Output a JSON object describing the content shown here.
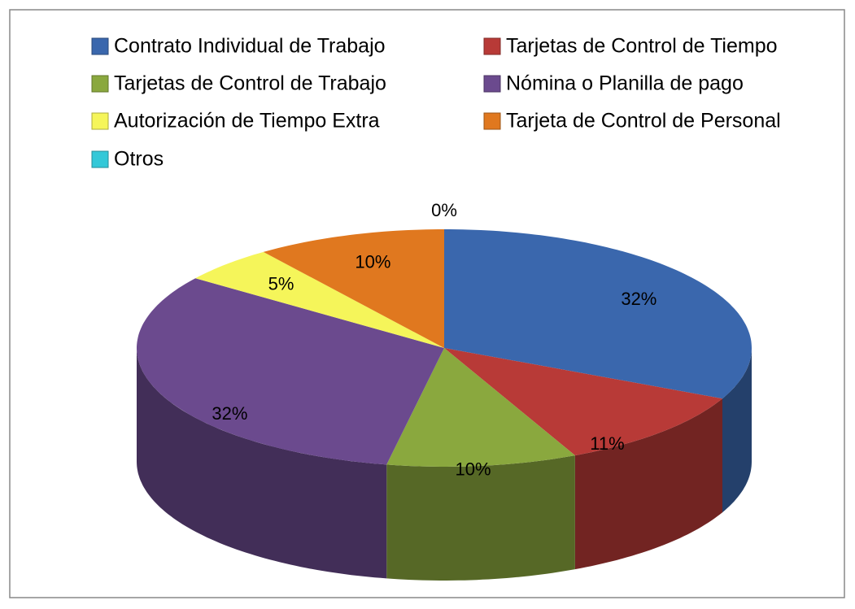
{
  "chart_data": {
    "type": "pie3d",
    "categories": [
      "Contrato Individual de Trabajo",
      "Tarjetas de Control de Tiempo",
      "Tarjetas de Control de Trabajo",
      "Nómina o Planilla de pago",
      "Autorización de Tiempo Extra",
      "Tarjeta de Control de Personal",
      "Otros"
    ],
    "values": [
      32,
      11,
      10,
      32,
      5,
      10,
      0
    ],
    "value_labels": [
      "32%",
      "11%",
      "10%",
      "32%",
      "5%",
      "10%",
      "0%"
    ],
    "colors": [
      "#3a67ad",
      "#b83a37",
      "#8aa83e",
      "#6b4a8e",
      "#f5f55a",
      "#e0781f",
      "#33c8d8"
    ],
    "legend": "top"
  }
}
